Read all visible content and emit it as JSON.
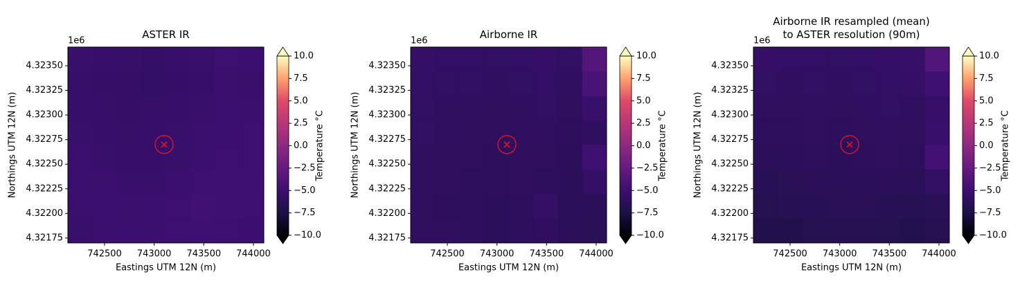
{
  "chart_data": [
    {
      "type": "heatmap",
      "title": "ASTER IR",
      "xlabel": "Eastings UTM 12N (m)",
      "ylabel": "Northings UTM 12N (m)",
      "offset_text": "1e6",
      "xlim": [
        742130,
        744105
      ],
      "ylim": [
        4.3217,
        4.32369
      ],
      "xticks": [
        742500,
        743000,
        743500,
        744000
      ],
      "yticks": [
        {
          "value": 4.32175,
          "label": "4.32175"
        },
        {
          "value": 4.322,
          "label": "4.32200"
        },
        {
          "value": 4.32225,
          "label": "4.32225"
        },
        {
          "value": 4.3225,
          "label": "4.32250"
        },
        {
          "value": 4.32275,
          "label": "4.32275"
        },
        {
          "value": 4.323,
          "label": "4.32300"
        },
        {
          "value": 4.32325,
          "label": "4.32325"
        },
        {
          "value": 4.3235,
          "label": "4.32350"
        }
      ],
      "z": [
        [
          -5.2,
          -5.3,
          -5.4,
          -5.5,
          -5.3,
          -5.2,
          -4.9,
          -5.0
        ],
        [
          -5.4,
          -5.5,
          -5.6,
          -5.7,
          -5.5,
          -5.3,
          -5.1,
          -5.2
        ],
        [
          -5.3,
          -5.4,
          -5.5,
          -5.4,
          -5.3,
          -5.2,
          -5.0,
          -5.1
        ],
        [
          -5.2,
          -5.3,
          -5.4,
          -5.3,
          -5.2,
          -5.1,
          -5.0,
          -4.9
        ],
        [
          -5.1,
          -5.2,
          -5.3,
          -5.3,
          -5.2,
          -5.0,
          -4.9,
          -4.9
        ],
        [
          -5.0,
          -5.1,
          -5.2,
          -5.2,
          -5.0,
          -4.9,
          -4.8,
          -4.8
        ],
        [
          -5.1,
          -5.0,
          -5.1,
          -5.0,
          -4.9,
          -4.7,
          -4.8,
          -4.9
        ],
        [
          -5.2,
          -5.1,
          -5.0,
          -5.1,
          -4.9,
          -4.8,
          -4.9,
          -5.0
        ]
      ],
      "marker": {
        "x": 743100,
        "y": 4.3227,
        "color": "#e8141c"
      },
      "colorbar": {
        "label": "Temperature °C",
        "colormap": "magma",
        "extend": "both",
        "lim": [
          -10,
          10
        ],
        "ticks": [
          {
            "value": -10,
            "label": "−10.0"
          },
          {
            "value": -7.5,
            "label": "−7.5"
          },
          {
            "value": -5,
            "label": "−5.0"
          },
          {
            "value": -2.5,
            "label": "−2.5"
          },
          {
            "value": 0,
            "label": "0.0"
          },
          2.5,
          {
            "value": 5,
            "label": "5.0"
          },
          7.5,
          {
            "value": 10,
            "label": "10.0"
          }
        ]
      }
    },
    {
      "type": "heatmap",
      "title": "Airborne IR",
      "xlabel": "Eastings UTM 12N (m)",
      "ylabel": "Northings UTM 12N (m)",
      "offset_text": "1e6",
      "xlim": [
        742130,
        744105
      ],
      "ylim": [
        4.3217,
        4.32369
      ],
      "xticks": [
        742500,
        743000,
        743500,
        744000
      ],
      "yticks": [
        {
          "value": 4.32175,
          "label": "4.32175"
        },
        {
          "value": 4.322,
          "label": "4.32200"
        },
        {
          "value": 4.32225,
          "label": "4.32225"
        },
        {
          "value": 4.3225,
          "label": "4.32250"
        },
        {
          "value": 4.32275,
          "label": "4.32275"
        },
        {
          "value": 4.323,
          "label": "4.32300"
        },
        {
          "value": 4.32325,
          "label": "4.32325"
        },
        {
          "value": 4.3235,
          "label": "4.32350"
        }
      ],
      "z": [
        [
          -5.6,
          -5.7,
          -5.7,
          -5.8,
          -5.7,
          -5.6,
          -5.8,
          -3.5
        ],
        [
          -5.7,
          -5.8,
          -5.8,
          -5.9,
          -5.8,
          -5.7,
          -5.9,
          -4.2
        ],
        [
          -5.8,
          -5.9,
          -5.9,
          -6.0,
          -5.9,
          -5.8,
          -6.0,
          -5.2
        ],
        [
          -5.8,
          -5.9,
          -6.0,
          -6.0,
          -5.9,
          -5.9,
          -6.1,
          -5.9
        ],
        [
          -5.9,
          -6.0,
          -6.0,
          -6.1,
          -6.0,
          -6.0,
          -6.2,
          -4.8
        ],
        [
          -5.9,
          -6.0,
          -6.1,
          -6.1,
          -6.0,
          -6.1,
          -6.2,
          -5.6
        ],
        [
          -6.0,
          -6.1,
          -6.1,
          -6.2,
          -6.1,
          -5.6,
          -6.3,
          -6.3
        ],
        [
          -5.9,
          -6.0,
          -6.1,
          -6.2,
          -6.1,
          -5.9,
          -6.3,
          -6.4
        ]
      ],
      "marker": {
        "x": 743100,
        "y": 4.3227,
        "color": "#e8141c"
      },
      "colorbar": {
        "label": "Temperature °C",
        "colormap": "magma",
        "extend": "both",
        "lim": [
          -10,
          10
        ],
        "ticks": [
          {
            "value": -10,
            "label": "−10.0"
          },
          {
            "value": -7.5,
            "label": "−7.5"
          },
          {
            "value": -5,
            "label": "−5.0"
          },
          {
            "value": -2.5,
            "label": "−2.5"
          },
          {
            "value": 0,
            "label": "0.0"
          },
          2.5,
          {
            "value": 5,
            "label": "5.0"
          },
          7.5,
          {
            "value": 10,
            "label": "10.0"
          }
        ]
      }
    },
    {
      "type": "heatmap",
      "title": "Airborne IR resampled (mean)\nto ASTER resolution (90m)",
      "xlabel": "Eastings UTM 12N (m)",
      "ylabel": "Northings UTM 12N (m)",
      "offset_text": "1e6",
      "xlim": [
        742130,
        744105
      ],
      "ylim": [
        4.3217,
        4.32369
      ],
      "xticks": [
        742500,
        743000,
        743500,
        744000
      ],
      "yticks": [
        {
          "value": 4.32175,
          "label": "4.32175"
        },
        {
          "value": 4.322,
          "label": "4.32200"
        },
        {
          "value": 4.32225,
          "label": "4.32225"
        },
        {
          "value": 4.3225,
          "label": "4.32250"
        },
        {
          "value": 4.32275,
          "label": "4.32275"
        },
        {
          "value": 4.323,
          "label": "4.32300"
        },
        {
          "value": 4.32325,
          "label": "4.32325"
        },
        {
          "value": 4.3235,
          "label": "4.32350"
        }
      ],
      "z": [
        [
          -5.6,
          -5.7,
          -5.7,
          -5.8,
          -5.7,
          -5.6,
          -5.4,
          -3.6
        ],
        [
          -5.8,
          -5.9,
          -5.8,
          -5.9,
          -5.8,
          -5.7,
          -5.6,
          -4.8
        ],
        [
          -6.0,
          -6.0,
          -5.9,
          -6.0,
          -5.9,
          -5.8,
          -5.9,
          -5.4
        ],
        [
          -6.1,
          -6.1,
          -6.0,
          -6.1,
          -6.0,
          -5.9,
          -6.0,
          -5.2
        ],
        [
          -6.3,
          -6.2,
          -6.1,
          -6.2,
          -6.1,
          -6.0,
          -6.1,
          -4.6
        ],
        [
          -6.5,
          -6.4,
          -6.3,
          -6.3,
          -6.2,
          -6.2,
          -6.3,
          -5.8
        ],
        [
          -6.8,
          -6.6,
          -6.5,
          -6.4,
          -6.4,
          -6.5,
          -6.6,
          -6.4
        ],
        [
          -7.1,
          -7.0,
          -6.8,
          -6.7,
          -6.7,
          -6.8,
          -6.9,
          -6.7
        ]
      ],
      "marker": {
        "x": 743100,
        "y": 4.3227,
        "color": "#e8141c"
      },
      "colorbar": {
        "label": "Temperature °C",
        "colormap": "magma",
        "extend": "both",
        "lim": [
          -10,
          10
        ],
        "ticks": [
          {
            "value": -10,
            "label": "−10.0"
          },
          {
            "value": -7.5,
            "label": "−7.5"
          },
          {
            "value": -5,
            "label": "−5.0"
          },
          {
            "value": -2.5,
            "label": "−2.5"
          },
          {
            "value": 0,
            "label": "0.0"
          },
          2.5,
          {
            "value": 5,
            "label": "5.0"
          },
          7.5,
          {
            "value": 10,
            "label": "10.0"
          }
        ]
      }
    }
  ]
}
